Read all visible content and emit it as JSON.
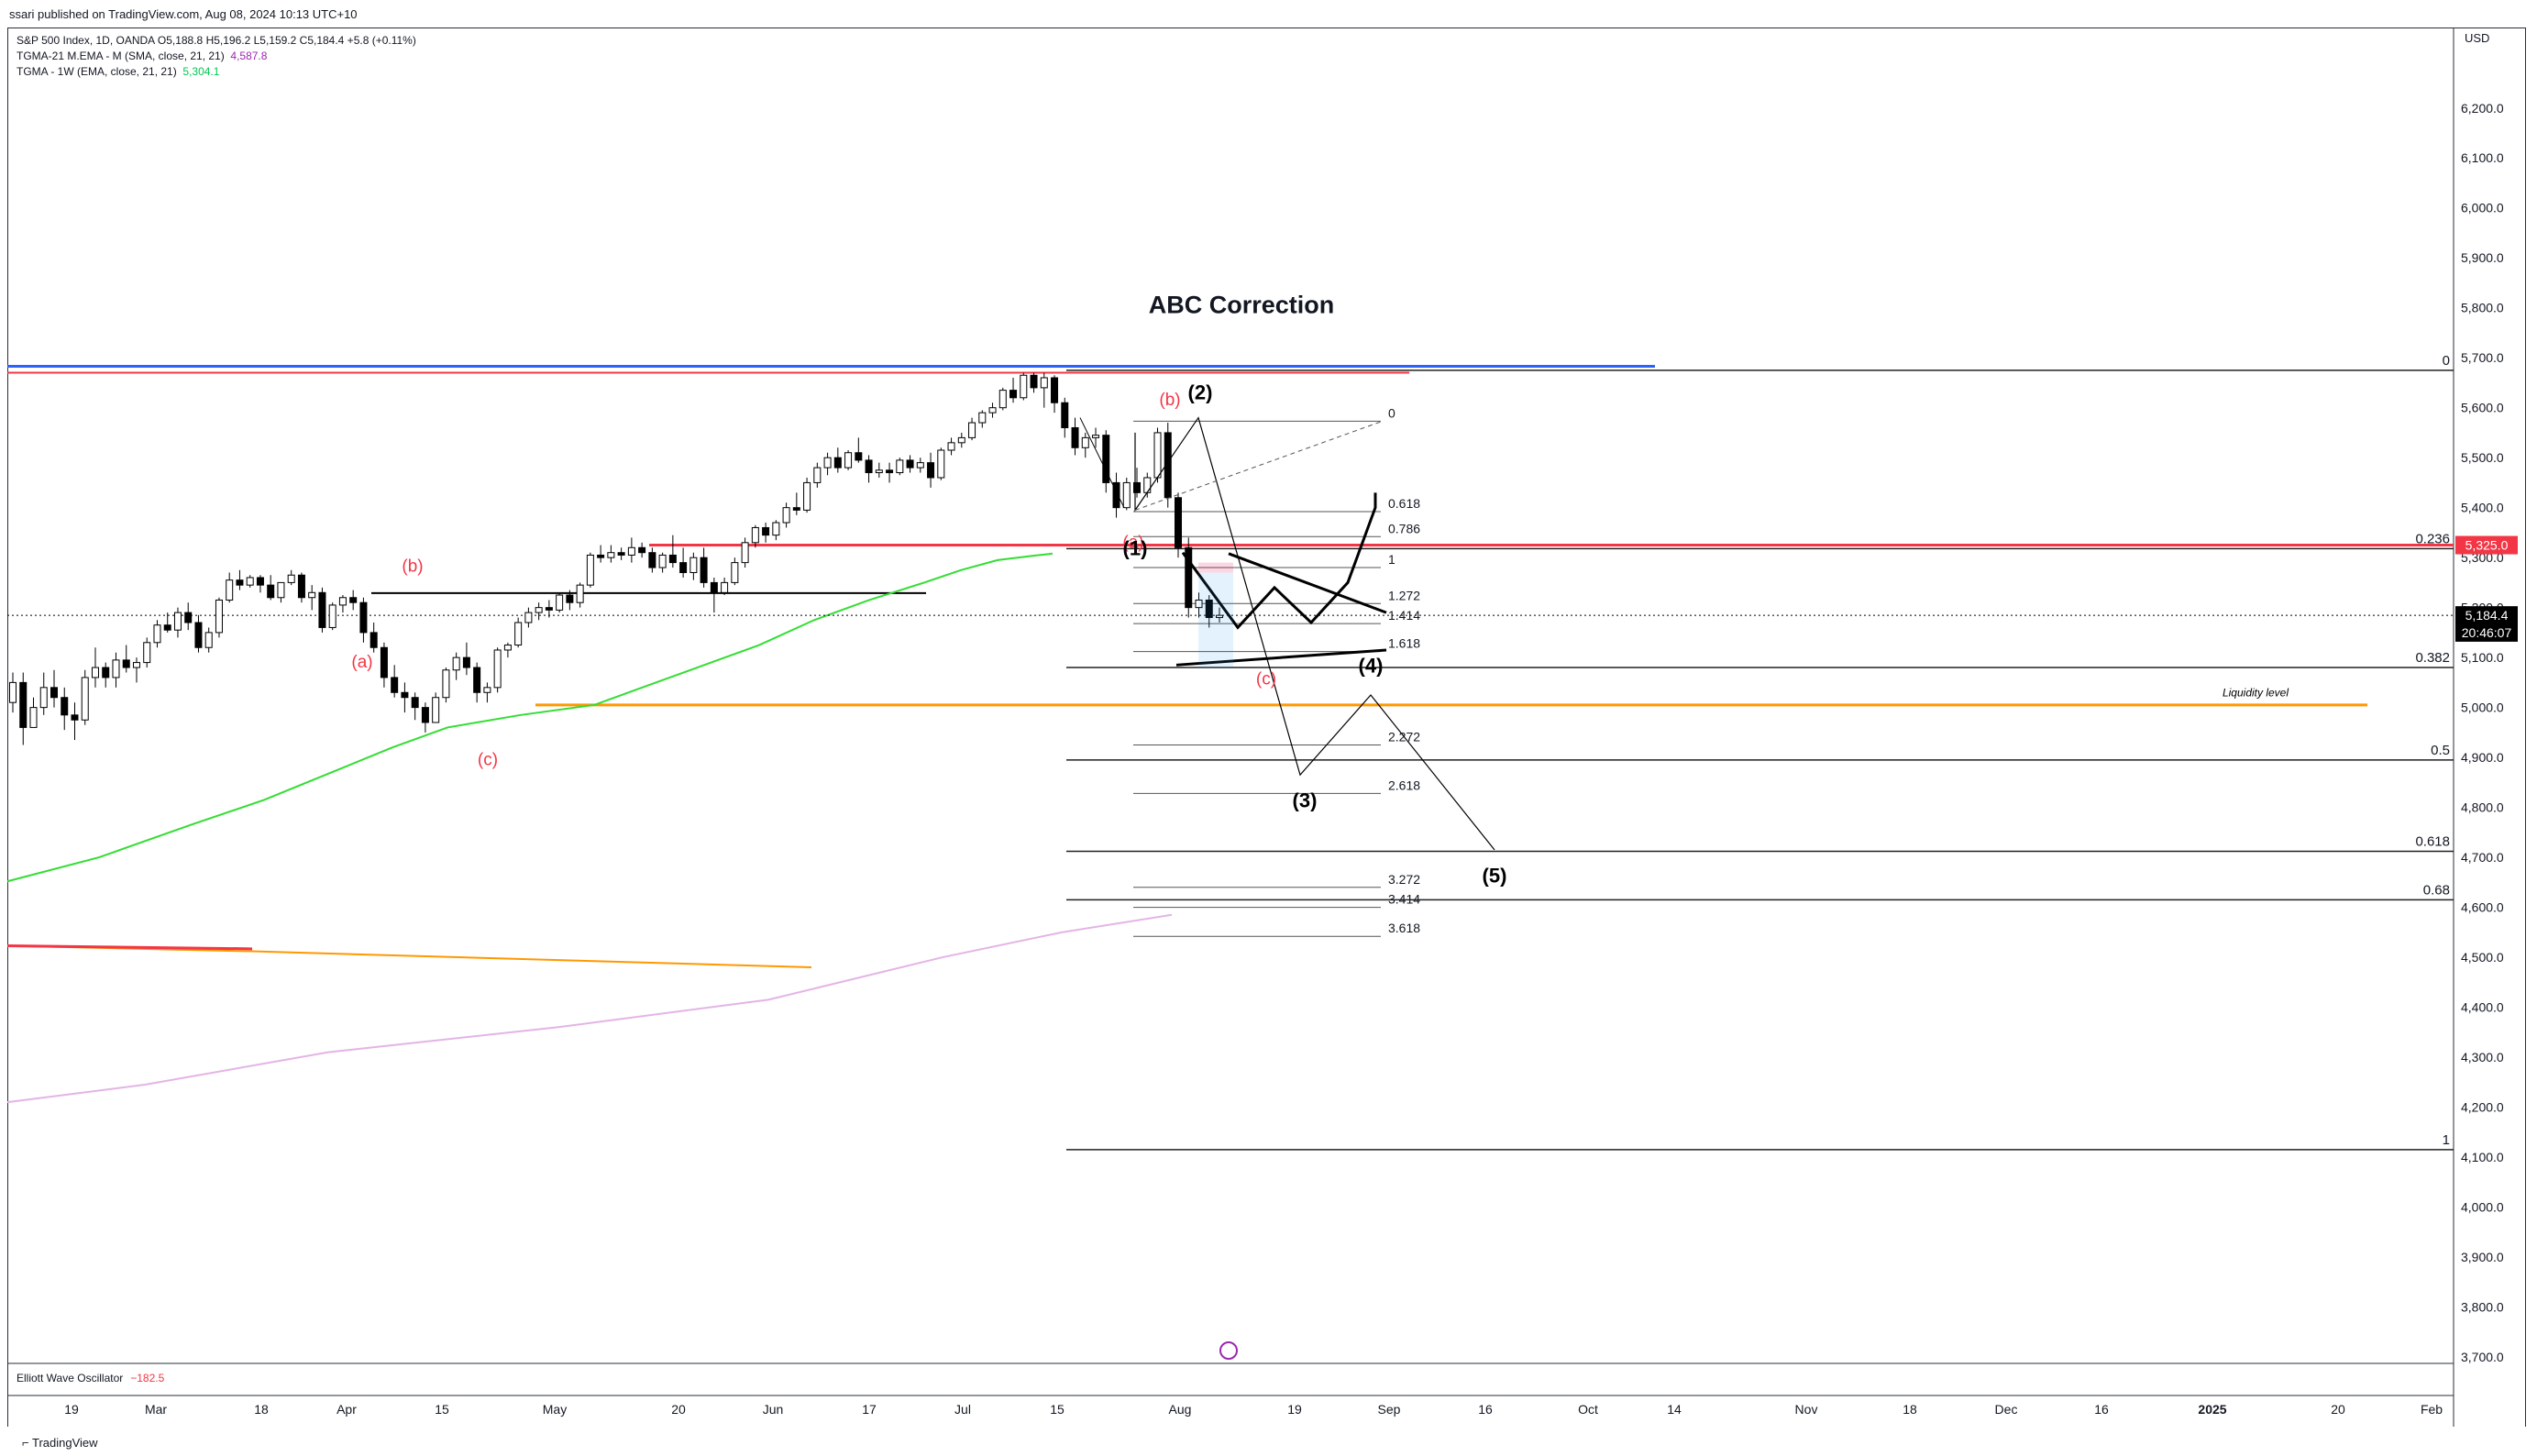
{
  "header": {
    "published_text": "ssari published on TradingView.com, Aug 08, 2024 10:13 UTC+10"
  },
  "legend": {
    "symbol_line": "S&P 500 Index, 1D, OANDA  O5,188.8  H5,196.2  L5,159.2  C5,184.4  +5.8 (+0.11%)",
    "ma1_label": "TGMA-21 M.EMA - M (SMA, close, 21, 21)",
    "ma1_value": "4,587.8",
    "ma2_label": "TGMA - 1W (EMA, close, 21, 21)",
    "ma2_value": "5,304.1"
  },
  "currency": "USD",
  "oscillator": {
    "name": "Elliott Wave Oscillator",
    "value": "−182.5"
  },
  "footer": {
    "brand": "TradingView"
  },
  "chart_data": {
    "type": "candlestick",
    "title": "ABC Correction",
    "xlabel": "",
    "ylabel": "",
    "ylim": [
      3665,
      6390
    ],
    "y_ticks": [
      "6,200.0",
      "6,100.0",
      "6,000.0",
      "5,900.0",
      "5,800.0",
      "5,700.0",
      "5,600.0",
      "5,500.0",
      "5,400.0",
      "5,300.0",
      "5,200.0",
      "5,100.0",
      "5,000.0",
      "4,900.0",
      "4,800.0",
      "4,700.0",
      "4,600.0",
      "4,500.0",
      "4,400.0",
      "4,300.0",
      "4,200.0",
      "4,100.0",
      "4,000.0",
      "3,900.0",
      "3,800.0",
      "3,700.0"
    ],
    "x_ticks": [
      "19",
      "Mar",
      "18",
      "Apr",
      "15",
      "May",
      "20",
      "Jun",
      "17",
      "Jul",
      "15",
      "Aug",
      "19",
      "Sep",
      "16",
      "Oct",
      "14",
      "Nov",
      "18",
      "Dec",
      "16",
      "2025",
      "20",
      "Feb"
    ],
    "price_labels": [
      {
        "text": "5,325.0",
        "color": "#f23645",
        "value": 5325
      },
      {
        "text": "5,184.4",
        "color": "#000000",
        "value": 5184.4
      },
      {
        "text": "20:46:07",
        "color": "#000000",
        "value": 5150
      }
    ],
    "candles": [
      [
        5010,
        5070,
        4990,
        5050
      ],
      [
        5050,
        5070,
        4925,
        4960
      ],
      [
        4960,
        5020,
        4970,
        5000
      ],
      [
        5000,
        5070,
        4985,
        5040
      ],
      [
        5040,
        5075,
        5000,
        5020
      ],
      [
        5020,
        5040,
        4955,
        4985
      ],
      [
        4985,
        5010,
        4935,
        4975
      ],
      [
        4975,
        5075,
        4965,
        5060
      ],
      [
        5060,
        5120,
        5040,
        5080
      ],
      [
        5080,
        5090,
        5040,
        5060
      ],
      [
        5060,
        5110,
        5040,
        5095
      ],
      [
        5095,
        5125,
        5070,
        5080
      ],
      [
        5080,
        5100,
        5050,
        5090
      ],
      [
        5090,
        5140,
        5080,
        5130
      ],
      [
        5130,
        5175,
        5120,
        5165
      ],
      [
        5165,
        5190,
        5150,
        5155
      ],
      [
        5155,
        5200,
        5140,
        5190
      ],
      [
        5190,
        5210,
        5155,
        5170
      ],
      [
        5170,
        5185,
        5110,
        5120
      ],
      [
        5120,
        5160,
        5110,
        5150
      ],
      [
        5150,
        5220,
        5140,
        5215
      ],
      [
        5215,
        5270,
        5210,
        5255
      ],
      [
        5255,
        5275,
        5235,
        5245
      ],
      [
        5245,
        5265,
        5240,
        5260
      ],
      [
        5260,
        5265,
        5230,
        5245
      ],
      [
        5245,
        5265,
        5215,
        5220
      ],
      [
        5220,
        5250,
        5210,
        5250
      ],
      [
        5250,
        5275,
        5245,
        5265
      ],
      [
        5265,
        5270,
        5210,
        5220
      ],
      [
        5220,
        5245,
        5195,
        5230
      ],
      [
        5230,
        5240,
        5150,
        5160
      ],
      [
        5160,
        5210,
        5155,
        5205
      ],
      [
        5205,
        5225,
        5190,
        5220
      ],
      [
        5220,
        5235,
        5195,
        5210
      ],
      [
        5210,
        5220,
        5130,
        5150
      ],
      [
        5150,
        5170,
        5110,
        5120
      ],
      [
        5120,
        5130,
        5040,
        5060
      ],
      [
        5060,
        5085,
        5020,
        5030
      ],
      [
        5030,
        5050,
        4990,
        5020
      ],
      [
        5020,
        5030,
        4975,
        5000
      ],
      [
        5000,
        5010,
        4950,
        4970
      ],
      [
        4970,
        5030,
        4970,
        5020
      ],
      [
        5020,
        5080,
        5010,
        5075
      ],
      [
        5075,
        5110,
        5055,
        5100
      ],
      [
        5100,
        5130,
        5065,
        5080
      ],
      [
        5080,
        5090,
        5010,
        5030
      ],
      [
        5030,
        5050,
        5010,
        5040
      ],
      [
        5040,
        5120,
        5030,
        5115
      ],
      [
        5115,
        5130,
        5100,
        5125
      ],
      [
        5125,
        5180,
        5120,
        5170
      ],
      [
        5170,
        5200,
        5160,
        5190
      ],
      [
        5190,
        5210,
        5175,
        5200
      ],
      [
        5200,
        5215,
        5180,
        5195
      ],
      [
        5195,
        5230,
        5190,
        5225
      ],
      [
        5225,
        5235,
        5195,
        5210
      ],
      [
        5210,
        5250,
        5200,
        5245
      ],
      [
        5245,
        5310,
        5240,
        5305
      ],
      [
        5305,
        5325,
        5290,
        5300
      ],
      [
        5300,
        5325,
        5290,
        5310
      ],
      [
        5310,
        5320,
        5295,
        5305
      ],
      [
        5305,
        5340,
        5290,
        5320
      ],
      [
        5320,
        5330,
        5300,
        5310
      ],
      [
        5310,
        5320,
        5270,
        5280
      ],
      [
        5280,
        5310,
        5270,
        5305
      ],
      [
        5305,
        5345,
        5280,
        5290
      ],
      [
        5290,
        5320,
        5260,
        5270
      ],
      [
        5270,
        5310,
        5255,
        5300
      ],
      [
        5300,
        5320,
        5240,
        5250
      ],
      [
        5250,
        5260,
        5190,
        5230
      ],
      [
        5230,
        5260,
        5225,
        5250
      ],
      [
        5250,
        5300,
        5245,
        5290
      ],
      [
        5290,
        5340,
        5280,
        5330
      ],
      [
        5330,
        5365,
        5320,
        5360
      ],
      [
        5360,
        5370,
        5330,
        5345
      ],
      [
        5345,
        5375,
        5335,
        5370
      ],
      [
        5370,
        5410,
        5360,
        5400
      ],
      [
        5400,
        5430,
        5385,
        5395
      ],
      [
        5395,
        5460,
        5390,
        5450
      ],
      [
        5450,
        5490,
        5440,
        5480
      ],
      [
        5480,
        5510,
        5465,
        5500
      ],
      [
        5500,
        5520,
        5470,
        5480
      ],
      [
        5480,
        5515,
        5475,
        5510
      ],
      [
        5510,
        5540,
        5490,
        5495
      ],
      [
        5495,
        5505,
        5450,
        5470
      ],
      [
        5470,
        5490,
        5460,
        5475
      ],
      [
        5475,
        5490,
        5450,
        5470
      ],
      [
        5470,
        5500,
        5465,
        5495
      ],
      [
        5495,
        5505,
        5470,
        5480
      ],
      [
        5480,
        5500,
        5470,
        5490
      ],
      [
        5490,
        5510,
        5440,
        5460
      ],
      [
        5460,
        5520,
        5455,
        5515
      ],
      [
        5515,
        5540,
        5505,
        5530
      ],
      [
        5530,
        5550,
        5520,
        5540
      ],
      [
        5540,
        5580,
        5535,
        5570
      ],
      [
        5570,
        5595,
        5560,
        5590
      ],
      [
        5590,
        5610,
        5580,
        5600
      ],
      [
        5600,
        5640,
        5595,
        5635
      ],
      [
        5635,
        5660,
        5610,
        5620
      ],
      [
        5620,
        5670,
        5615,
        5665
      ],
      [
        5665,
        5670,
        5630,
        5640
      ],
      [
        5640,
        5670,
        5600,
        5660
      ],
      [
        5660,
        5665,
        5590,
        5610
      ],
      [
        5610,
        5620,
        5540,
        5560
      ],
      [
        5560,
        5580,
        5505,
        5520
      ],
      [
        5520,
        5550,
        5500,
        5540
      ],
      [
        5540,
        5560,
        5520,
        5545
      ],
      [
        5545,
        5555,
        5430,
        5450
      ],
      [
        5450,
        5470,
        5380,
        5400
      ],
      [
        5400,
        5460,
        5395,
        5450
      ],
      [
        5450,
        5480,
        5420,
        5430
      ],
      [
        5430,
        5470,
        5420,
        5460
      ],
      [
        5460,
        5560,
        5450,
        5550
      ],
      [
        5550,
        5570,
        5400,
        5420
      ],
      [
        5420,
        5430,
        5300,
        5320
      ],
      [
        5320,
        5340,
        5180,
        5200
      ],
      [
        5200,
        5230,
        5180,
        5215
      ],
      [
        5215,
        5225,
        5160,
        5180
      ],
      [
        5180,
        5200,
        5170,
        5184.4
      ]
    ],
    "moving_averages": [
      {
        "name": "TGMA - 1W",
        "color": "#33dd33",
        "points": [
          [
            0,
            4652
          ],
          [
            100,
            4700
          ],
          [
            200,
            4765
          ],
          [
            280,
            4815
          ],
          [
            340,
            4860
          ],
          [
            420,
            4920
          ],
          [
            480,
            4960
          ],
          [
            560,
            4985
          ],
          [
            640,
            5005
          ],
          [
            700,
            5045
          ],
          [
            760,
            5085
          ],
          [
            820,
            5125
          ],
          [
            880,
            5175
          ],
          [
            940,
            5215
          ],
          [
            1000,
            5250
          ],
          [
            1040,
            5275
          ],
          [
            1080,
            5295
          ],
          [
            1120,
            5304
          ],
          [
            1140,
            5308
          ]
        ]
      },
      {
        "name": "TGMA-21 M.EMA - M",
        "color": "#e3b4e6",
        "points": [
          [
            0,
            4210
          ],
          [
            150,
            4245
          ],
          [
            350,
            4310
          ],
          [
            600,
            4360
          ],
          [
            830,
            4415
          ],
          [
            1020,
            4500
          ],
          [
            1150,
            4550
          ],
          [
            1270,
            4585
          ]
        ]
      }
    ],
    "fib_extension_right": [
      {
        "label": "0",
        "value": 5675
      },
      {
        "label": "0.236",
        "value": 5318
      },
      {
        "label": "0.382",
        "value": 5080
      },
      {
        "label": "0.5",
        "value": 4895
      },
      {
        "label": "0.618",
        "value": 4712
      },
      {
        "label": "0.68",
        "value": 4615
      },
      {
        "label": "1",
        "value": 4115
      }
    ],
    "fib_extension_center": [
      {
        "label": "0",
        "value": 5573
      },
      {
        "label": "0.618",
        "value": 5392
      },
      {
        "label": "0.786",
        "value": 5342
      },
      {
        "label": "1",
        "value": 5280
      },
      {
        "label": "1.272",
        "value": 5208
      },
      {
        "label": "1.414",
        "value": 5168
      },
      {
        "label": "1.618",
        "value": 5112
      },
      {
        "label": "2.272",
        "value": 4925
      },
      {
        "label": "2.618",
        "value": 4828
      },
      {
        "label": "3.272",
        "value": 4640
      },
      {
        "label": "3.414",
        "value": 4600
      },
      {
        "label": "3.618",
        "value": 4542
      }
    ],
    "horizontal_levels": [
      {
        "name": "resistance-blue",
        "color": "#2962ff",
        "value": 5683
      },
      {
        "name": "resistance-red",
        "color": "#f23645",
        "value": 5670
      },
      {
        "name": "level-red",
        "color": "#f23645",
        "value": 5325
      },
      {
        "name": "liquidity",
        "color": "#ff9800",
        "value": 5005
      },
      {
        "name": "black-support",
        "color": "#000000",
        "value": 5229
      }
    ],
    "annotations": [
      {
        "text": "(a)",
        "color": "#f23645",
        "x": 395,
        "y": 5080
      },
      {
        "text": "(b)",
        "color": "#f23645",
        "x": 450,
        "y": 5272
      },
      {
        "text": "(c)",
        "color": "#f23645",
        "x": 532,
        "y": 4885
      },
      {
        "text": "(a)",
        "color": "#f23645",
        "x": 1236,
        "y": 5320
      },
      {
        "text": "(b)",
        "color": "#f23645",
        "x": 1276,
        "y": 5605
      },
      {
        "text": "(c)",
        "color": "#f23645",
        "x": 1381,
        "y": 5046
      },
      {
        "text": "(1)",
        "color": "#000000",
        "x": 1238,
        "y": 5305
      },
      {
        "text": "(2)",
        "color": "#000000",
        "x": 1309,
        "y": 5617
      },
      {
        "text": "(3)",
        "color": "#000000",
        "x": 1423,
        "y": 4800
      },
      {
        "text": "(4)",
        "color": "#000000",
        "x": 1495,
        "y": 5070
      },
      {
        "text": "(5)",
        "color": "#000000",
        "x": 1630,
        "y": 4650
      },
      {
        "text": "Liquidity level",
        "color": "#000000",
        "x": 2460,
        "y": 5022
      }
    ]
  }
}
